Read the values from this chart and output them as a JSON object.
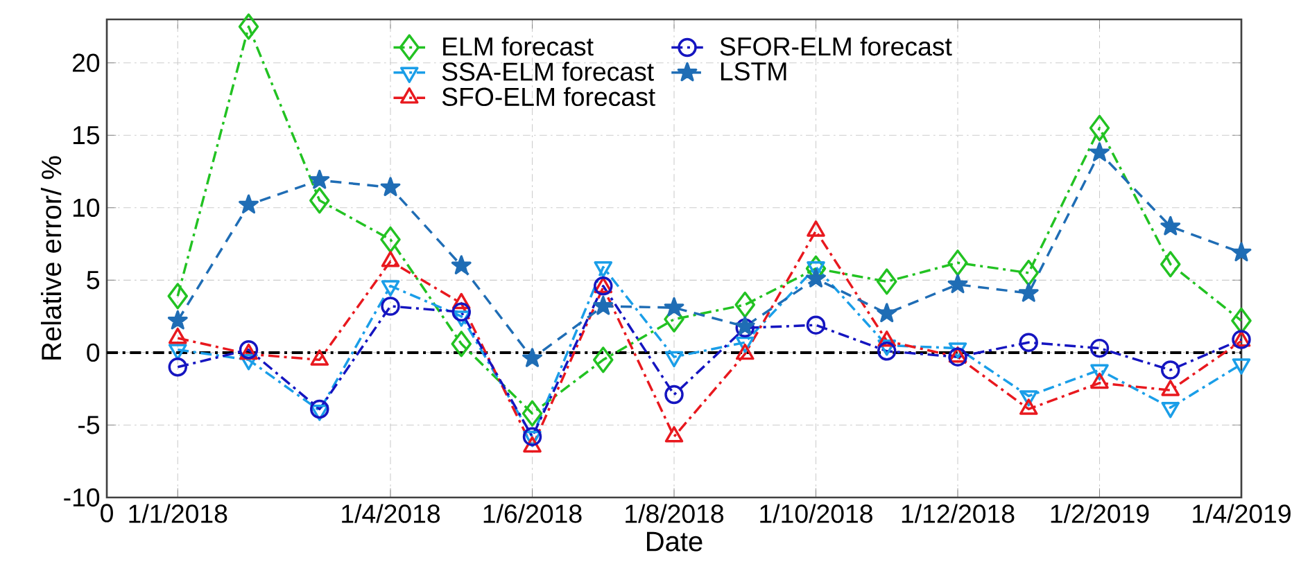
{
  "chart_data": {
    "type": "line",
    "xlabel": "Date",
    "ylabel": "Relative error/ %",
    "categories": [
      "0",
      "1/1/2018",
      null,
      null,
      "1/4/2018",
      null,
      "1/6/2018",
      null,
      "1/8/2018",
      null,
      "1/10/2018",
      null,
      "1/12/2018",
      null,
      "1/2/2019",
      null,
      "1/4/2019"
    ],
    "ylim": [
      -10,
      23
    ],
    "yticks": [
      -10,
      -5,
      0,
      5,
      10,
      15,
      20
    ],
    "grid": true,
    "legend": "top",
    "ref_lines": [
      {
        "axis": "y",
        "value": 0,
        "color": "#000000",
        "line_style": "dashdot"
      }
    ],
    "series": [
      {
        "name": "ELM forecast",
        "color": "#22c222",
        "marker": "diamond",
        "line_style": "dashdot",
        "values": [
          null,
          3.9,
          22.5,
          10.5,
          7.8,
          0.6,
          -4.2,
          -0.5,
          2.3,
          3.3,
          5.8,
          4.9,
          6.2,
          5.5,
          15.5,
          6.1,
          2.2
        ]
      },
      {
        "name": "SSA-ELM forecast",
        "color": "#1a9ee8",
        "marker": "triangle_down",
        "line_style": "dashdot",
        "values": [
          null,
          0.2,
          -0.5,
          -4.0,
          4.6,
          2.5,
          -5.8,
          5.9,
          -0.3,
          0.7,
          5.9,
          0.5,
          0.3,
          -3.0,
          -1.2,
          -3.8,
          -0.8
        ]
      },
      {
        "name": "SFO-ELM forecast",
        "color": "#e8181e",
        "marker": "triangle",
        "line_style": "dashdot",
        "values": [
          null,
          1.0,
          -0.1,
          -0.5,
          6.3,
          3.4,
          -6.5,
          4.5,
          -5.8,
          -0.1,
          8.4,
          0.8,
          -0.3,
          -3.9,
          -2.1,
          -2.6,
          0.8
        ]
      },
      {
        "name": "SFOR-ELM forecast",
        "color": "#1515c0",
        "marker": "circle",
        "line_style": "dashdot",
        "values": [
          null,
          -1.0,
          0.2,
          -3.9,
          3.2,
          2.8,
          -5.8,
          4.6,
          -2.9,
          1.7,
          1.9,
          0.1,
          -0.3,
          0.7,
          0.3,
          -1.2,
          0.9
        ]
      },
      {
        "name": "LSTM",
        "color": "#1f6db5",
        "marker": "star",
        "line_style": "dashed",
        "values": [
          null,
          2.2,
          10.2,
          11.9,
          11.4,
          6.0,
          -0.4,
          3.2,
          3.1,
          1.8,
          5.1,
          2.7,
          4.7,
          4.1,
          13.8,
          8.7,
          6.9
        ]
      }
    ]
  }
}
